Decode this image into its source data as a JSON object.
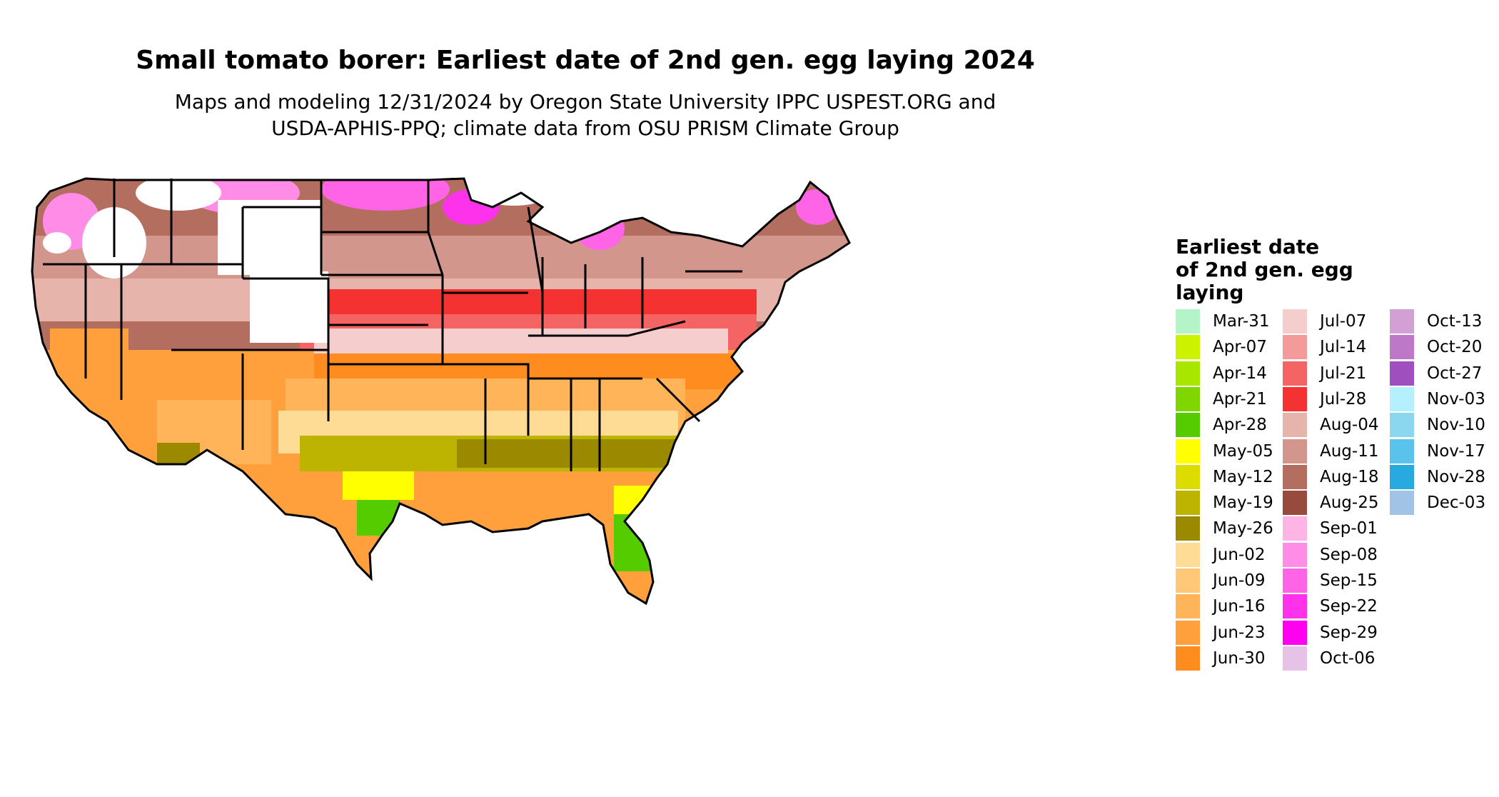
{
  "title": "Small tomato borer: Earliest date of 2nd gen. egg laying 2024",
  "subtitle_line1": "Maps and modeling 12/31/2024 by Oregon State University IPPC USPEST.ORG and",
  "subtitle_line2": "USDA-APHIS-PPQ; climate data from OSU PRISM Climate Group",
  "legend": {
    "title_line1": "Earliest date",
    "title_line2": "of 2nd gen. egg",
    "title_line3": "laying",
    "items": [
      {
        "label": "Mar-31",
        "color": "#b3f5c8"
      },
      {
        "label": "Apr-07",
        "color": "#ccf200"
      },
      {
        "label": "Apr-14",
        "color": "#a8e600"
      },
      {
        "label": "Apr-21",
        "color": "#7fd600"
      },
      {
        "label": "Apr-28",
        "color": "#55cc00"
      },
      {
        "label": "May-05",
        "color": "#ffff00"
      },
      {
        "label": "May-12",
        "color": "#dcdc00"
      },
      {
        "label": "May-19",
        "color": "#bcb400"
      },
      {
        "label": "May-26",
        "color": "#9b8a00"
      },
      {
        "label": "Jun-02",
        "color": "#ffdc96"
      },
      {
        "label": "Jun-09",
        "color": "#ffc878"
      },
      {
        "label": "Jun-16",
        "color": "#ffb45a"
      },
      {
        "label": "Jun-23",
        "color": "#ffa03c"
      },
      {
        "label": "Jun-30",
        "color": "#ff8c1e"
      },
      {
        "label": "Jul-07",
        "color": "#f5cdcd"
      },
      {
        "label": "Jul-14",
        "color": "#f59a9a"
      },
      {
        "label": "Jul-21",
        "color": "#f56464"
      },
      {
        "label": "Jul-28",
        "color": "#f53232"
      },
      {
        "label": "Aug-04",
        "color": "#e6b4aa"
      },
      {
        "label": "Aug-11",
        "color": "#d2968c"
      },
      {
        "label": "Aug-18",
        "color": "#b46e5f"
      },
      {
        "label": "Aug-25",
        "color": "#964b3c"
      },
      {
        "label": "Sep-01",
        "color": "#ffb4e6"
      },
      {
        "label": "Sep-08",
        "color": "#ff8ce6"
      },
      {
        "label": "Sep-15",
        "color": "#ff64e6"
      },
      {
        "label": "Sep-22",
        "color": "#ff32eb"
      },
      {
        "label": "Sep-29",
        "color": "#ff00f0"
      },
      {
        "label": "Oct-06",
        "color": "#e6c3e6"
      },
      {
        "label": "Oct-13",
        "color": "#d2a0d2"
      },
      {
        "label": "Oct-20",
        "color": "#be78c8"
      },
      {
        "label": "Oct-27",
        "color": "#a050be"
      },
      {
        "label": "Nov-03",
        "color": "#b4f0ff"
      },
      {
        "label": "Nov-10",
        "color": "#8cd7f0"
      },
      {
        "label": "Nov-17",
        "color": "#5ac3eb"
      },
      {
        "label": "Nov-28",
        "color": "#28aae1"
      },
      {
        "label": "Dec-03",
        "color": "#a0c3e6"
      }
    ]
  },
  "map": {
    "region": "contiguous-united-states",
    "state_border_color": "#000000",
    "no_development_color": "#ffffff"
  }
}
